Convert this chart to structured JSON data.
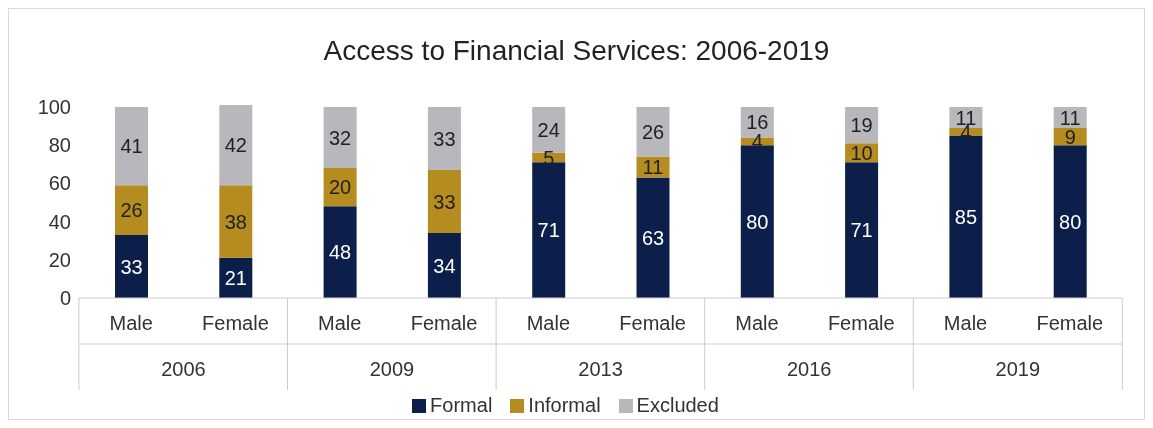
{
  "chart_data": {
    "type": "bar",
    "title": "Access to Financial Services: 2006-2019",
    "categories": [
      "Male",
      "Female",
      "Male",
      "Female",
      "Male",
      "Female",
      "Male",
      "Female",
      "Male",
      "Female"
    ],
    "annotations": [
      "2006",
      "2009",
      "2013",
      "2016",
      "2019"
    ],
    "series": [
      {
        "name": "Formal",
        "color": "#0c1f4a",
        "values": [
          33,
          21,
          48,
          34,
          71,
          63,
          80,
          71,
          85,
          80
        ]
      },
      {
        "name": "Informal",
        "color": "#b58c1f",
        "values": [
          26,
          38,
          20,
          33,
          5,
          11,
          4,
          10,
          4,
          9
        ]
      },
      {
        "name": "Excluded",
        "color": "#b8b8bc",
        "values": [
          41,
          42,
          32,
          33,
          24,
          26,
          16,
          19,
          11,
          11
        ]
      }
    ],
    "stacked": true,
    "data_labels": true,
    "ylim": [
      0,
      101
    ],
    "yticks": [
      0,
      20,
      40,
      60,
      80,
      100
    ],
    "grid": false,
    "legend": "bottom"
  }
}
